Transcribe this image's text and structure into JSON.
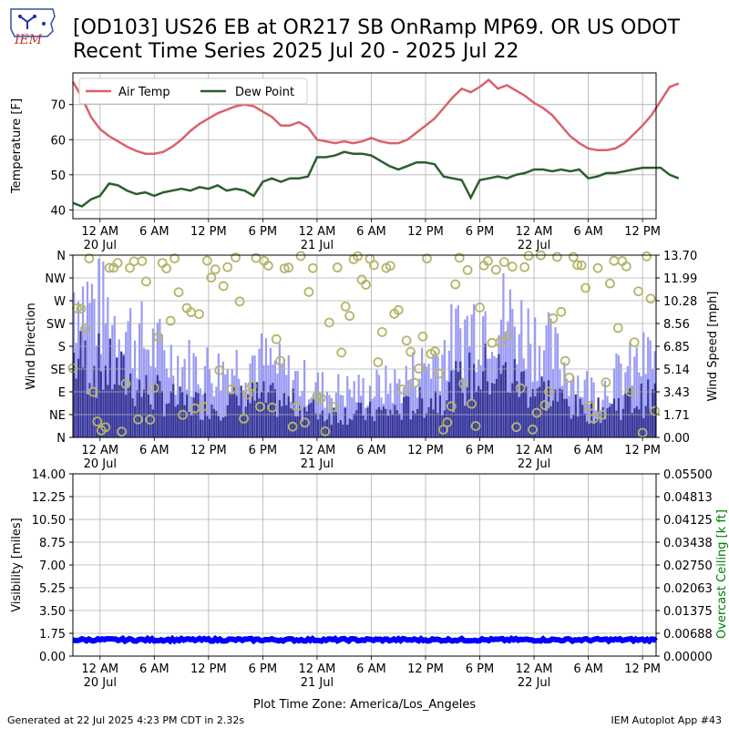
{
  "title_line1": "[OD103] US26 EB at OR217 SB OnRamp MP69. OR US ODOT",
  "title_line2": "Recent Time Series 2025 Jul 20 - 2025 Jul 22",
  "logo_text": "IEM",
  "footer_left": "Generated at 22 Jul 2025 4:23 PM CDT in 2.32s",
  "footer_right": "IEM Autoplot App #43",
  "xlabel": "Plot Time Zone: America/Los_Angeles",
  "colors": {
    "air_temp": "#d9626a",
    "dew_point": "#2e5e2e",
    "gust": "#9b9bf5",
    "speed": "#38389a",
    "direction": "#b5b56a",
    "visibility": "#0000ff",
    "ceiling_label": "#008000"
  },
  "chart_data": [
    {
      "type": "line",
      "ylabel": "Temperature [F]",
      "ylim": [
        37.5,
        79
      ],
      "yticks": [
        40,
        50,
        60,
        70
      ],
      "grid": true,
      "legend": "top-left",
      "x_tick_labels": [
        "12 AM\n20 Jul",
        "6 AM",
        "12 PM",
        "6 PM",
        "12 AM\n21 Jul",
        "6 AM",
        "12 PM",
        "6 PM",
        "12 AM\n22 Jul",
        "6 AM",
        "12 PM"
      ],
      "x_range_hours": [
        "2025-07-19 21:00",
        "2025-07-22 13:30"
      ],
      "series": [
        {
          "name": "Air Temp",
          "points": [
            [
              0,
              76.5
            ],
            [
              1,
              72
            ],
            [
              2,
              66.5
            ],
            [
              3,
              63
            ],
            [
              4,
              61
            ],
            [
              5,
              59.5
            ],
            [
              6,
              58
            ],
            [
              7,
              56.8
            ],
            [
              8,
              56
            ],
            [
              9,
              56
            ],
            [
              10,
              56.5
            ],
            [
              11,
              58
            ],
            [
              12,
              60
            ],
            [
              13,
              62.5
            ],
            [
              14,
              64.5
            ],
            [
              15,
              66
            ],
            [
              16,
              67.5
            ],
            [
              17,
              68.5
            ],
            [
              18,
              69.5
            ],
            [
              19,
              70
            ],
            [
              20,
              69.5
            ],
            [
              21,
              68
            ],
            [
              22,
              66.5
            ],
            [
              23,
              64
            ],
            [
              24,
              64
            ],
            [
              25,
              65
            ],
            [
              26,
              63.5
            ],
            [
              27,
              60
            ],
            [
              28,
              59.5
            ],
            [
              29,
              59
            ],
            [
              30,
              59.5
            ],
            [
              31,
              59
            ],
            [
              32,
              59.5
            ],
            [
              33,
              60.5
            ],
            [
              34,
              59.5
            ],
            [
              35,
              59
            ],
            [
              36,
              59
            ],
            [
              37,
              60
            ],
            [
              38,
              62
            ],
            [
              39,
              64
            ],
            [
              40,
              66
            ],
            [
              41,
              69
            ],
            [
              42,
              72
            ],
            [
              43,
              74.5
            ],
            [
              44,
              73.5
            ],
            [
              45,
              75
            ],
            [
              46,
              77
            ],
            [
              47,
              74.5
            ],
            [
              48,
              75.5
            ],
            [
              49,
              74
            ],
            [
              50,
              72.5
            ],
            [
              51,
              70.5
            ],
            [
              52,
              69
            ],
            [
              53,
              67
            ],
            [
              54,
              64
            ],
            [
              55,
              61
            ],
            [
              56,
              59
            ],
            [
              57,
              57.5
            ],
            [
              58,
              57
            ],
            [
              59,
              57
            ],
            [
              60,
              57.5
            ],
            [
              61,
              59
            ],
            [
              62,
              61.5
            ],
            [
              63,
              64
            ],
            [
              64,
              67
            ],
            [
              65,
              71
            ],
            [
              66,
              75
            ],
            [
              67,
              76
            ]
          ]
        },
        {
          "name": "Dew Point",
          "points": [
            [
              0,
              42
            ],
            [
              1,
              41
            ],
            [
              2,
              43
            ],
            [
              3,
              44
            ],
            [
              4,
              47.5
            ],
            [
              5,
              47
            ],
            [
              6,
              45.5
            ],
            [
              7,
              44.5
            ],
            [
              8,
              45
            ],
            [
              9,
              44
            ],
            [
              10,
              45
            ],
            [
              11,
              45.5
            ],
            [
              12,
              46
            ],
            [
              13,
              45.5
            ],
            [
              14,
              46.5
            ],
            [
              15,
              46
            ],
            [
              16,
              47
            ],
            [
              17,
              45.5
            ],
            [
              18,
              46
            ],
            [
              19,
              45.5
            ],
            [
              20,
              44
            ],
            [
              21,
              48
            ],
            [
              22,
              49
            ],
            [
              23,
              48
            ],
            [
              24,
              49
            ],
            [
              25,
              49
            ],
            [
              26,
              49.5
            ],
            [
              27,
              55
            ],
            [
              28,
              55
            ],
            [
              29,
              55.5
            ],
            [
              30,
              56.5
            ],
            [
              31,
              56
            ],
            [
              32,
              56
            ],
            [
              33,
              55.5
            ],
            [
              34,
              54
            ],
            [
              35,
              52.5
            ],
            [
              36,
              51.5
            ],
            [
              37,
              52.5
            ],
            [
              38,
              53.5
            ],
            [
              39,
              53.5
            ],
            [
              40,
              53
            ],
            [
              41,
              49.5
            ],
            [
              42,
              49
            ],
            [
              43,
              48.5
            ],
            [
              44,
              43.5
            ],
            [
              45,
              48.5
            ],
            [
              46,
              49
            ],
            [
              47,
              49.5
            ],
            [
              48,
              49
            ],
            [
              49,
              50
            ],
            [
              50,
              50.5
            ],
            [
              51,
              51.5
            ],
            [
              52,
              51.5
            ],
            [
              53,
              51
            ],
            [
              54,
              51.5
            ],
            [
              55,
              51
            ],
            [
              56,
              51.5
            ],
            [
              57,
              49
            ],
            [
              58,
              49.5
            ],
            [
              59,
              50.5
            ],
            [
              60,
              50.5
            ],
            [
              61,
              51
            ],
            [
              62,
              51.5
            ],
            [
              63,
              52
            ],
            [
              64,
              52
            ],
            [
              65,
              52
            ],
            [
              66,
              50
            ],
            [
              67,
              49
            ]
          ]
        }
      ]
    },
    {
      "type": "bar",
      "ylabel": "Wind Direction",
      "y2label": "Wind Speed [mph]",
      "direction_ticks": [
        "N",
        "NE",
        "E",
        "SE",
        "S",
        "SW",
        "W",
        "NW",
        "N"
      ],
      "speed_ticks": [
        "0.00",
        "1.71",
        "3.43",
        "5.14",
        "6.85",
        "8.56",
        "10.28",
        "11.99",
        "13.70"
      ],
      "speed_ylim": [
        0,
        13.7
      ],
      "grid": true,
      "x_tick_labels": [
        "12 AM\n20 Jul",
        "6 AM",
        "12 PM",
        "6 PM",
        "12 AM\n21 Jul",
        "6 AM",
        "12 PM",
        "6 PM",
        "12 AM\n22 Jul",
        "6 AM",
        "12 PM"
      ],
      "gust_mph": [
        [
          0,
          11
        ],
        [
          4,
          9
        ],
        [
          8,
          7
        ],
        [
          12,
          5.5
        ],
        [
          16,
          5
        ],
        [
          20,
          6
        ],
        [
          24,
          4.5
        ],
        [
          28,
          3.5
        ],
        [
          32,
          3.5
        ],
        [
          36,
          4
        ],
        [
          40,
          6
        ],
        [
          44,
          8.5
        ],
        [
          46,
          9.5
        ],
        [
          48,
          9
        ],
        [
          52,
          7
        ],
        [
          56,
          4
        ],
        [
          58,
          3.5
        ],
        [
          60,
          4.5
        ],
        [
          64,
          6
        ],
        [
          67,
          8
        ]
      ],
      "speed_mph": [
        [
          0,
          6
        ],
        [
          4,
          5
        ],
        [
          8,
          3.5
        ],
        [
          12,
          2.5
        ],
        [
          16,
          2.5
        ],
        [
          20,
          3
        ],
        [
          24,
          2.5
        ],
        [
          28,
          1.8
        ],
        [
          32,
          1.8
        ],
        [
          36,
          2
        ],
        [
          40,
          3
        ],
        [
          44,
          4.5
        ],
        [
          46,
          5
        ],
        [
          48,
          4.5
        ],
        [
          52,
          3.5
        ],
        [
          56,
          2
        ],
        [
          58,
          2
        ],
        [
          60,
          2.5
        ],
        [
          64,
          3
        ],
        [
          67,
          4
        ]
      ]
    },
    {
      "type": "line",
      "ylabel": "Visibility [miles]",
      "y2label": "Overcast Ceiling [k ft]",
      "ylim": [
        0,
        14
      ],
      "yticks": [
        "0.00",
        "1.75",
        "3.50",
        "5.25",
        "7.00",
        "8.75",
        "10.50",
        "12.25",
        "14.00"
      ],
      "y2ticks": [
        "0.00000",
        "0.00688",
        "0.01375",
        "0.02063",
        "0.02750",
        "0.03438",
        "0.04125",
        "0.04813",
        "0.05500"
      ],
      "grid": true,
      "x_tick_labels": [
        "12 AM\n20 Jul",
        "6 AM",
        "12 PM",
        "6 PM",
        "12 AM\n21 Jul",
        "6 AM",
        "12 PM",
        "6 PM",
        "12 AM\n22 Jul",
        "6 AM",
        "12 PM"
      ],
      "series": [
        {
          "name": "Visibility",
          "values_note_miles": 1.25
        }
      ]
    }
  ]
}
